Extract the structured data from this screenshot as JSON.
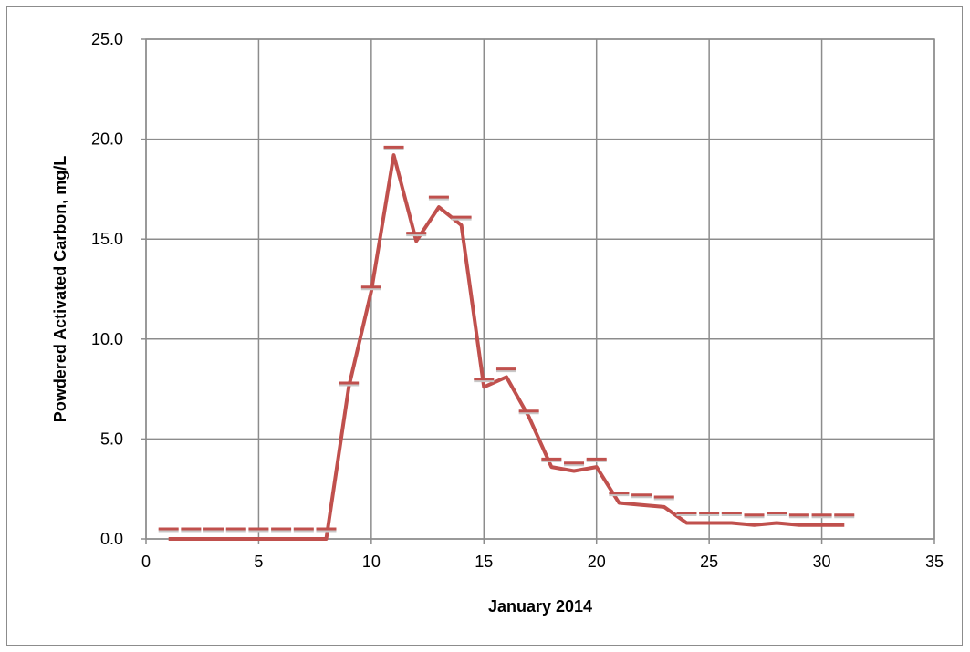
{
  "chart_data": {
    "type": "line",
    "title": "",
    "xlabel": "January 2014",
    "ylabel": "Powdered Activated Carbon, mg/L",
    "xlim": [
      0,
      35
    ],
    "ylim": [
      0,
      25
    ],
    "x_ticks": [
      "0",
      "5",
      "10",
      "15",
      "20",
      "25",
      "30",
      "35"
    ],
    "y_ticks": [
      "0.0",
      "5.0",
      "10.0",
      "15.0",
      "20.0",
      "25.0"
    ],
    "grid": true,
    "legend": "none",
    "series": [
      {
        "style": "solid-line",
        "color": "#c0504d",
        "x": [
          1,
          2,
          3,
          4,
          5,
          6,
          7,
          8,
          9,
          10,
          11,
          12,
          13,
          14,
          15,
          16,
          17,
          18,
          19,
          20,
          21,
          22,
          23,
          24,
          25,
          26,
          27,
          28,
          29,
          30,
          31
        ],
        "y": [
          0,
          0,
          0,
          0,
          0,
          0,
          0,
          0,
          7.6,
          12.4,
          19.2,
          14.9,
          16.6,
          15.7,
          7.6,
          8.1,
          6.1,
          3.6,
          3.4,
          3.6,
          1.8,
          1.7,
          1.6,
          0.8,
          0.8,
          0.8,
          0.7,
          0.8,
          0.7,
          0.7,
          0.7
        ]
      },
      {
        "style": "dash-markers",
        "color": "#c0504d",
        "x": [
          1,
          2,
          3,
          4,
          5,
          6,
          7,
          8,
          9,
          10,
          11,
          12,
          13,
          14,
          15,
          16,
          17,
          18,
          19,
          20,
          21,
          22,
          23,
          24,
          25,
          26,
          27,
          28,
          29,
          30,
          31
        ],
        "y": [
          0.5,
          0.5,
          0.5,
          0.5,
          0.5,
          0.5,
          0.5,
          0.5,
          7.8,
          12.6,
          19.6,
          15.3,
          17.1,
          16.1,
          8.0,
          8.5,
          6.4,
          4.0,
          3.8,
          4.0,
          2.3,
          2.2,
          2.1,
          1.3,
          1.3,
          1.3,
          1.2,
          1.3,
          1.2,
          1.2,
          1.2
        ]
      }
    ]
  }
}
